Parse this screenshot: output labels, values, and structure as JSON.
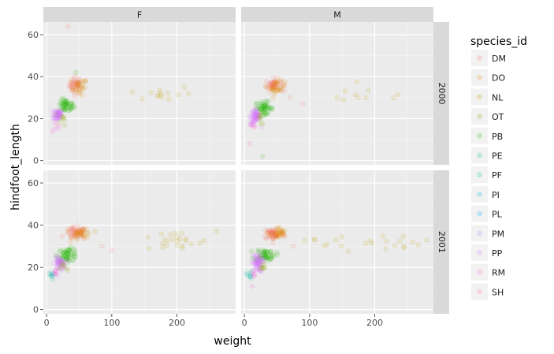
{
  "chart_data": {
    "type": "scatter",
    "facet_columns": [
      "F",
      "M"
    ],
    "facet_rows": [
      "2000",
      "2001"
    ],
    "xlabel": "weight",
    "ylabel": "hindfoot_length",
    "xlim": [
      -5,
      290
    ],
    "ylim": [
      -2,
      66
    ],
    "x_ticks": [
      0,
      100,
      200
    ],
    "y_ticks": [
      0,
      20,
      40,
      60
    ],
    "grid": true,
    "legend": {
      "title": "species_id",
      "position": "right",
      "entries": [
        "DM",
        "DO",
        "NL",
        "OT",
        "PB",
        "PE",
        "PF",
        "PI",
        "PL",
        "PM",
        "PP",
        "RM",
        "SH"
      ]
    },
    "colors": {
      "DM": "#f8766d",
      "DO": "#e18a00",
      "NL": "#bea100",
      "OT": "#8cab00",
      "PB": "#24b700",
      "PE": "#00be70",
      "PF": "#00c1ab",
      "PI": "#00bbda",
      "PL": "#00acfc",
      "PM": "#8b93ff",
      "PP": "#d575fe",
      "RM": "#f962dd",
      "SH": "#ff65ac"
    },
    "point_alpha": 0.12,
    "series_note": "approximate cluster centers per panel (weight, hindfoot_length, spread)",
    "panels": [
      {
        "sex": "F",
        "year": "2000",
        "clusters": [
          {
            "species": "DM",
            "center": [
              45,
              36
            ],
            "spread": [
              5,
              2
            ],
            "n": 40
          },
          {
            "species": "DO",
            "center": [
              50,
              35
            ],
            "spread": [
              6,
              2
            ],
            "n": 25
          },
          {
            "species": "PB",
            "center": [
              30,
              26
            ],
            "spread": [
              6,
              1.5
            ],
            "n": 50
          },
          {
            "species": "PP",
            "center": [
              17,
              22
            ],
            "spread": [
              4,
              1.5
            ],
            "n": 45
          },
          {
            "species": "NL",
            "center": [
              175,
              32
            ],
            "spread": [
              25,
              2
            ],
            "n": 14
          },
          {
            "species": "OT",
            "center": [
              25,
              20
            ],
            "spread": [
              3,
              1.5
            ],
            "n": 8
          },
          {
            "species": "RM",
            "center": [
              12,
              17
            ],
            "spread": [
              3,
              1.5
            ],
            "n": 6
          }
        ],
        "outliers": [
          {
            "species": "DM",
            "x": 33,
            "y": 64
          },
          {
            "species": "PB",
            "x": 45,
            "y": 42
          }
        ]
      },
      {
        "sex": "M",
        "year": "2000",
        "clusters": [
          {
            "species": "DM",
            "center": [
              45,
              36
            ],
            "spread": [
              6,
              1.5
            ],
            "n": 45
          },
          {
            "species": "DO",
            "center": [
              50,
              35
            ],
            "spread": [
              6,
              1.5
            ],
            "n": 30
          },
          {
            "species": "PB",
            "center": [
              30,
              25
            ],
            "spread": [
              7,
              1.5
            ],
            "n": 50
          },
          {
            "species": "PP",
            "center": [
              17,
              21
            ],
            "spread": [
              4,
              2
            ],
            "n": 50
          },
          {
            "species": "NL",
            "center": [
              190,
              31
            ],
            "spread": [
              40,
              2
            ],
            "n": 10
          },
          {
            "species": "OT",
            "center": [
              25,
              20
            ],
            "spread": [
              3,
              1.5
            ],
            "n": 8
          },
          {
            "species": "RM",
            "center": [
              12,
              17
            ],
            "spread": [
              3,
              1.5
            ],
            "n": 6
          }
        ],
        "outliers": [
          {
            "species": "RM",
            "x": 8,
            "y": 8
          },
          {
            "species": "PB",
            "x": 28,
            "y": 2
          },
          {
            "species": "DM",
            "x": 70,
            "y": 30
          },
          {
            "species": "DM",
            "x": 90,
            "y": 27
          }
        ]
      },
      {
        "sex": "F",
        "year": "2001",
        "clusters": [
          {
            "species": "DM",
            "center": [
              45,
              36
            ],
            "spread": [
              8,
              1.5
            ],
            "n": 50
          },
          {
            "species": "DO",
            "center": [
              55,
              36
            ],
            "spread": [
              8,
              1.5
            ],
            "n": 30
          },
          {
            "species": "PB",
            "center": [
              32,
              26
            ],
            "spread": [
              8,
              1.5
            ],
            "n": 55
          },
          {
            "species": "PP",
            "center": [
              20,
              22
            ],
            "spread": [
              4,
              1.5
            ],
            "n": 45
          },
          {
            "species": "NL",
            "center": [
              190,
              32
            ],
            "spread": [
              35,
              2.5
            ],
            "n": 24
          },
          {
            "species": "OT",
            "center": [
              27,
              20
            ],
            "spread": [
              3,
              1.5
            ],
            "n": 8
          },
          {
            "species": "PF",
            "center": [
              8,
              16
            ],
            "spread": [
              2,
              1
            ],
            "n": 8
          },
          {
            "species": "RM",
            "center": [
              14,
              17
            ],
            "spread": [
              3,
              1.5
            ],
            "n": 6
          }
        ],
        "outliers": [
          {
            "species": "DM",
            "x": 85,
            "y": 30
          },
          {
            "species": "DM",
            "x": 100,
            "y": 28
          }
        ]
      },
      {
        "sex": "M",
        "year": "2001",
        "clusters": [
          {
            "species": "DM",
            "center": [
              45,
              36
            ],
            "spread": [
              8,
              1.5
            ],
            "n": 55
          },
          {
            "species": "DO",
            "center": [
              52,
              36
            ],
            "spread": [
              6,
              1.5
            ],
            "n": 30
          },
          {
            "species": "PB",
            "center": [
              32,
              26
            ],
            "spread": [
              8,
              1.5
            ],
            "n": 55
          },
          {
            "species": "PP",
            "center": [
              20,
              22
            ],
            "spread": [
              4,
              2
            ],
            "n": 55
          },
          {
            "species": "NL",
            "center": [
              180,
              32
            ],
            "spread": [
              45,
              2
            ],
            "n": 22
          },
          {
            "species": "OT",
            "center": [
              27,
              20
            ],
            "spread": [
              3,
              1.5
            ],
            "n": 8
          },
          {
            "species": "PF",
            "center": [
              8,
              16
            ],
            "spread": [
              2,
              1
            ],
            "n": 8
          },
          {
            "species": "RM",
            "center": [
              14,
              17
            ],
            "spread": [
              3,
              1.5
            ],
            "n": 6
          }
        ],
        "outliers": [
          {
            "species": "DM",
            "x": 75,
            "y": 30
          },
          {
            "species": "NL",
            "x": 280,
            "y": 33
          },
          {
            "species": "RM",
            "x": 12,
            "y": 11
          }
        ]
      }
    ]
  }
}
